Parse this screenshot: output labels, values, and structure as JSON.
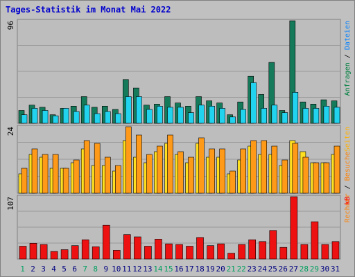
{
  "title": "Tages-Statistik im Monat Mai 2022",
  "colors": {
    "frame_bg": "#c0c0c0",
    "panel_bg": "#bdbdbd",
    "title": "#0000cc",
    "grid": "#999999",
    "hits": "#147a5a",
    "files": "#22d3f0",
    "pages": "#ffe020",
    "visits": "#ff9918",
    "kbytes": "#ee1111",
    "legend_hits": "#008040",
    "legend_files": "#0080ff",
    "legend_sep": "#000000",
    "legend_pages": "#ffb000",
    "legend_visits": "#ff8000",
    "legend_kbytes": "#ff0000",
    "weekday_label": "#000080",
    "weekend_label": "#00a060"
  },
  "chart_data": [
    {
      "type": "bar",
      "panel": "hits-files",
      "ylim": [
        0,
        96
      ],
      "ymax_label": "96",
      "x": [
        1,
        2,
        3,
        4,
        5,
        6,
        7,
        8,
        9,
        10,
        11,
        12,
        13,
        14,
        15,
        16,
        17,
        18,
        19,
        20,
        21,
        22,
        23,
        24,
        25,
        26,
        27,
        28,
        29,
        30,
        31
      ],
      "series": [
        {
          "name": "Anfragen",
          "color_key": "hits",
          "values": [
            12,
            17,
            15,
            8,
            14,
            16,
            25,
            15,
            16,
            13,
            41,
            33,
            17,
            18,
            25,
            19,
            16,
            25,
            21,
            19,
            8,
            20,
            44,
            27,
            57,
            12,
            96,
            20,
            18,
            22,
            21
          ]
        },
        {
          "name": "Dateien",
          "color_key": "files",
          "values": [
            8,
            14,
            12,
            7,
            14,
            11,
            17,
            9,
            11,
            9,
            25,
            25,
            13,
            16,
            15,
            15,
            10,
            17,
            16,
            14,
            6,
            13,
            38,
            14,
            17,
            10,
            29,
            14,
            14,
            16,
            15
          ]
        }
      ],
      "legend": [
        {
          "text": "Anfragen",
          "color_key": "legend_hits"
        },
        {
          "text": " / ",
          "color_key": "legend_sep"
        },
        {
          "text": "Dateien",
          "color_key": "legend_files"
        }
      ]
    },
    {
      "type": "bar",
      "panel": "pages-visits",
      "ylim": [
        0,
        24
      ],
      "ymax_label": "24",
      "x": [
        1,
        2,
        3,
        4,
        5,
        6,
        7,
        8,
        9,
        10,
        11,
        12,
        13,
        14,
        15,
        16,
        17,
        18,
        19,
        20,
        21,
        22,
        23,
        24,
        25,
        26,
        27,
        28,
        29,
        30,
        31
      ],
      "series": [
        {
          "name": "Seiten",
          "color_key": "pages",
          "values": [
            7,
            14,
            13,
            9,
            9,
            11,
            16,
            10,
            10,
            8,
            19,
            13,
            11,
            15,
            18,
            14,
            11,
            18,
            13,
            13,
            7,
            12,
            17,
            14,
            14,
            10,
            19,
            15,
            11,
            11,
            14
          ]
        },
        {
          "name": "Besuche",
          "color_key": "visits",
          "values": [
            9,
            16,
            14,
            14,
            9,
            12,
            19,
            18,
            13,
            10,
            24,
            21,
            14,
            17,
            21,
            15,
            13,
            20,
            16,
            16,
            8,
            16,
            19,
            19,
            17,
            12,
            18,
            13,
            11,
            11,
            17
          ]
        }
      ],
      "legend": [
        {
          "text": "Rechner",
          "color_key": "legend_visits"
        },
        {
          "text": " / ",
          "color_key": "legend_sep"
        },
        {
          "text": "Besuche",
          "color_key": "legend_visits"
        },
        {
          "text": "Seiten",
          "color_key": "legend_pages"
        }
      ]
    },
    {
      "type": "bar",
      "panel": "kbytes",
      "ylim": [
        0,
        107
      ],
      "ymax_label": "107",
      "x": [
        1,
        2,
        3,
        4,
        5,
        6,
        7,
        8,
        9,
        10,
        11,
        12,
        13,
        14,
        15,
        16,
        17,
        18,
        19,
        20,
        21,
        22,
        23,
        24,
        25,
        26,
        27,
        28,
        29,
        30,
        31
      ],
      "series": [
        {
          "name": "kB",
          "color_key": "kbytes",
          "values": [
            22,
            27,
            25,
            13,
            16,
            23,
            33,
            21,
            58,
            15,
            42,
            38,
            22,
            34,
            26,
            25,
            22,
            37,
            23,
            26,
            10,
            25,
            33,
            30,
            49,
            20,
            107,
            25,
            64,
            25,
            30
          ]
        }
      ],
      "legend": [
        {
          "text": "kB",
          "color_key": "legend_kbytes"
        }
      ]
    }
  ],
  "day_labels": [
    "1",
    "2",
    "3",
    "4",
    "5",
    "6",
    "7",
    "8",
    "9",
    "10",
    "11",
    "12",
    "13",
    "14",
    "15",
    "16",
    "17",
    "18",
    "19",
    "20",
    "21",
    "22",
    "23",
    "24",
    "25",
    "26",
    "27",
    "28",
    "29",
    "30",
    "31"
  ],
  "weekend_days": [
    1,
    7,
    8,
    14,
    15,
    21,
    22,
    28,
    29
  ]
}
